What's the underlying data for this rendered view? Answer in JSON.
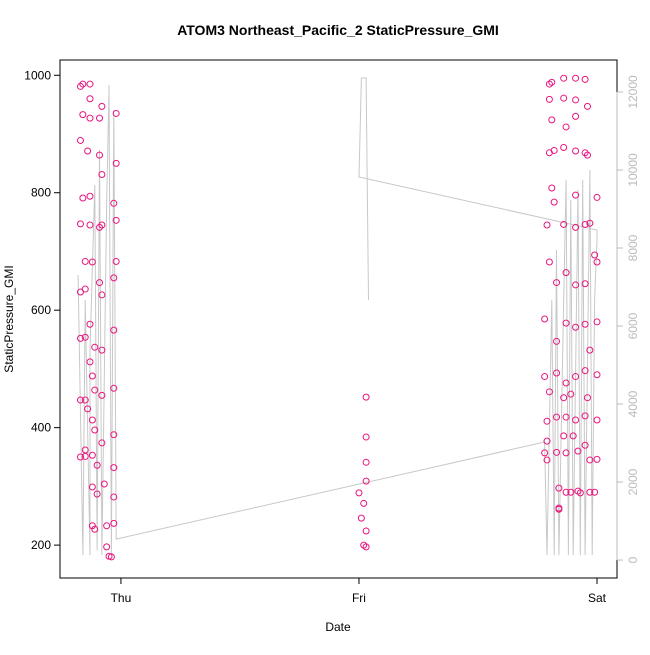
{
  "chart_data": {
    "type": "scatter",
    "title": "ATOM3 Northeast_Pacific_2 StaticPressure_GMI",
    "xlabel": "Date",
    "ylabel": "StaticPressure_GMI",
    "xlim": [
      -0.256,
      2.084
    ],
    "xticks": [
      {
        "value": 0,
        "label": "Thu"
      },
      {
        "value": 1,
        "label": "Fri"
      },
      {
        "value": 2,
        "label": "Sat"
      }
    ],
    "ylim": [
      144,
      1026
    ],
    "yticks": [
      200,
      400,
      600,
      800,
      1000
    ],
    "y2lim": [
      -460,
      12820
    ],
    "y2ticks": [
      0,
      2000,
      4000,
      6000,
      8000,
      10000,
      12000
    ],
    "series": [
      {
        "mode": "markers",
        "color": "#e8157f",
        "x": [
          -0.17,
          -0.16,
          -0.13,
          -0.16,
          -0.13,
          -0.13,
          -0.09,
          -0.08,
          -0.02,
          -0.17,
          -0.14,
          -0.09,
          -0.08,
          -0.02,
          -0.13,
          -0.16,
          -0.13,
          -0.09,
          -0.08,
          -0.17,
          -0.03,
          -0.02,
          -0.02,
          -0.12,
          -0.15,
          -0.15,
          -0.09,
          -0.08,
          -0.03,
          -0.17,
          -0.13,
          -0.17,
          -0.15,
          -0.13,
          -0.11,
          -0.08,
          -0.03,
          -0.12,
          -0.11,
          -0.08,
          -0.03,
          -0.17,
          -0.15,
          -0.14,
          -0.12,
          -0.11,
          -0.08,
          -0.03,
          -0.17,
          -0.15,
          -0.15,
          -0.12,
          -0.1,
          -0.03,
          -0.07,
          -0.12,
          -0.1,
          -0.03,
          -0.12,
          -0.11,
          -0.06,
          -0.03,
          -0.06,
          -0.05,
          -0.04,
          1.03,
          1.03,
          1.03,
          1.03,
          1.0,
          1.02,
          1.01,
          1.03,
          1.02,
          1.03,
          1.8,
          1.81,
          1.86,
          1.91,
          1.95,
          1.86,
          1.91,
          1.96,
          1.8,
          1.81,
          1.87,
          1.91,
          1.8,
          1.82,
          1.86,
          1.91,
          1.95,
          1.96,
          2.0,
          1.81,
          1.82,
          1.91,
          1.86,
          1.91,
          1.95,
          1.97,
          1.79,
          1.8,
          1.83,
          1.87,
          1.91,
          1.95,
          1.99,
          2.0,
          1.78,
          1.83,
          1.87,
          1.91,
          1.95,
          2.0,
          1.97,
          1.78,
          1.83,
          1.87,
          1.91,
          1.95,
          2.0,
          1.8,
          1.86,
          1.89,
          1.96,
          1.79,
          1.83,
          1.87,
          1.91,
          1.95,
          2.0,
          1.79,
          1.86,
          1.9,
          1.95,
          1.78,
          1.83,
          1.87,
          1.92,
          1.97,
          2.0,
          1.79,
          1.84,
          1.87,
          1.89,
          1.92,
          1.93,
          1.97,
          1.99,
          1.84,
          1.84
        ],
        "values": [
          981,
          985,
          985,
          933,
          960,
          927,
          927,
          947,
          935,
          889,
          871,
          864,
          831,
          850,
          794,
          791,
          745,
          741,
          745,
          747,
          782,
          753,
          683,
          682,
          683,
          636,
          647,
          626,
          655,
          631,
          576,
          552,
          554,
          512,
          537,
          532,
          566,
          488,
          464,
          455,
          467,
          447,
          447,
          432,
          413,
          396,
          374,
          388,
          350,
          362,
          351,
          353,
          336,
          332,
          304,
          299,
          287,
          282,
          233,
          227,
          233,
          237,
          197,
          181,
          180,
          452,
          384,
          341,
          309,
          289,
          271,
          246,
          224,
          200,
          197,
          985,
          988,
          995,
          995,
          993,
          961,
          958,
          947,
          959,
          924,
          912,
          930,
          868,
          872,
          877,
          871,
          868,
          864,
          792,
          808,
          784,
          796,
          746,
          741,
          746,
          748,
          745,
          682,
          647,
          664,
          643,
          645,
          694,
          682,
          585,
          547,
          578,
          571,
          576,
          580,
          532,
          487,
          493,
          476,
          487,
          497,
          490,
          461,
          451,
          457,
          451,
          411,
          418,
          418,
          413,
          420,
          413,
          377,
          386,
          386,
          370,
          357,
          358,
          357,
          360,
          345,
          346,
          345,
          297,
          290,
          290,
          292,
          289,
          290,
          290,
          263,
          261
        ]
      },
      {
        "mode": "lines",
        "axis": "y2",
        "color": "#c8c8c8",
        "x": [
          -0.18,
          -0.16,
          -0.15,
          -0.13,
          -0.13,
          -0.11,
          -0.1,
          -0.09,
          -0.08,
          -0.06,
          -0.05,
          -0.05,
          -0.04,
          -0.03,
          -0.02,
          1.78,
          1.79,
          1.81,
          1.82,
          1.83,
          1.84,
          1.86,
          1.87,
          1.88,
          1.89,
          1.9,
          1.92,
          1.93,
          1.94,
          1.95,
          1.97,
          1.98,
          1.99,
          2.0,
          2.0,
          1.0,
          1.01,
          1.03,
          1.04
        ],
        "values": [
          7308,
          128,
          6667,
          128,
          5385,
          9615,
          256,
          10513,
          128,
          9231,
          12051,
          12179,
          128,
          11538,
          538,
          3026,
          128,
          6667,
          128,
          7949,
          128,
          6667,
          9744,
          128,
          9231,
          128,
          9487,
          128,
          9744,
          128,
          10000,
          128,
          6667,
          8205,
          8462,
          9821,
          12359,
          12359,
          6667
        ]
      }
    ]
  }
}
